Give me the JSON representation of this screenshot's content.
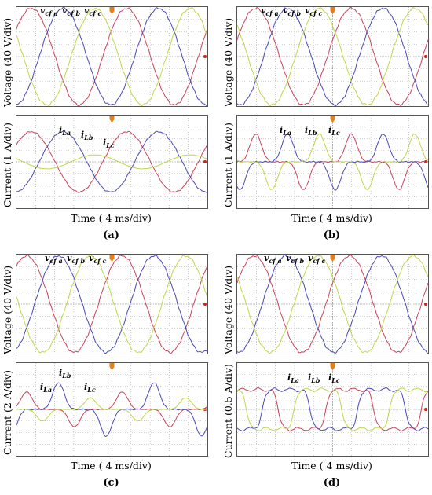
{
  "panels": [
    {
      "letter": "(a)",
      "xlabel": "Time ( 4 ms/div)",
      "voltage": {
        "ylabel": "Voltage (40 V/div)",
        "labels": [
          "vcfa",
          "vcfb",
          "vcfc"
        ]
      },
      "current": {
        "ylabel": "Current (1 A/div)",
        "labels": [
          "iLa",
          "iLb",
          "iLc"
        ]
      }
    },
    {
      "letter": "(b)",
      "xlabel": "Time ( 4 ms/div)",
      "voltage": {
        "ylabel": "Voltage (40 V/div)",
        "labels": [
          "vcfa",
          "vcfb",
          "vcfc"
        ]
      },
      "current": {
        "ylabel": "Current (1 A/div)",
        "labels": [
          "iLa",
          "iLb",
          "iLc"
        ]
      }
    },
    {
      "letter": "(c)",
      "xlabel": "Time ( 4 ms/div)",
      "voltage": {
        "ylabel": "Voltage (40 V/div)",
        "labels": [
          "vcfa",
          "vcfb",
          "vcfc"
        ]
      },
      "current": {
        "ylabel": "Current (2 A/div)",
        "labels": [
          "iLa",
          "iLb",
          "iLc"
        ]
      }
    },
    {
      "letter": "(d)",
      "xlabel": "Time ( 4 ms/div)",
      "voltage": {
        "ylabel": "Voltage (40 V/div)",
        "labels": [
          "vcfa",
          "vcfb",
          "vcfc"
        ]
      },
      "current": {
        "ylabel": "Current (0.5 A/div)",
        "labels": [
          "iLa",
          "iLb",
          "iLc"
        ]
      }
    }
  ],
  "colors": {
    "phase_a": "#c8425a",
    "phase_b": "#4848b8",
    "phase_c": "#bcd848",
    "grid": "#a8a8a8",
    "marker": "#e08020"
  },
  "chart_data": [
    {
      "type": "line",
      "panel": "(a) voltage",
      "xlabel": "Time ( 4 ms/div)",
      "ylabel": "Voltage (40 V/div)",
      "x_divisions": 10,
      "y_divisions": 8,
      "grid": true,
      "series": [
        {
          "name": "vcfa",
          "amplitude_div": 3.9,
          "period_ms": 20,
          "shape": "sine"
        },
        {
          "name": "vcfb",
          "amplitude_div": 3.9,
          "period_ms": 20,
          "shape": "sine"
        },
        {
          "name": "vcfc",
          "amplitude_div": 3.9,
          "period_ms": 20,
          "shape": "sine"
        }
      ]
    },
    {
      "type": "line",
      "panel": "(a) current",
      "xlabel": "Time ( 4 ms/div)",
      "ylabel": "Current (1 A/div)",
      "x_divisions": 10,
      "y_divisions": 8,
      "grid": true,
      "series": [
        {
          "name": "iLa",
          "amplitude_div": 2.6,
          "period_ms": 20,
          "shape": "sine"
        },
        {
          "name": "iLb",
          "amplitude_div": 2.6,
          "period_ms": 20,
          "shape": "sine"
        },
        {
          "name": "iLc",
          "amplitude_div": 0.6,
          "period_ms": 20,
          "shape": "sine"
        }
      ]
    },
    {
      "type": "line",
      "panel": "(b) voltage",
      "xlabel": "Time ( 4 ms/div)",
      "ylabel": "Voltage (40 V/div)",
      "x_divisions": 10,
      "y_divisions": 8,
      "grid": true,
      "series": [
        {
          "name": "vcfa",
          "amplitude_div": 3.9,
          "period_ms": 20,
          "shape": "sine"
        },
        {
          "name": "vcfb",
          "amplitude_div": 3.9,
          "period_ms": 20,
          "shape": "sine"
        },
        {
          "name": "vcfc",
          "amplitude_div": 3.9,
          "period_ms": 20,
          "shape": "sine"
        }
      ]
    },
    {
      "type": "line",
      "panel": "(b) current",
      "xlabel": "Time ( 4 ms/div)",
      "ylabel": "Current (1 A/div)",
      "x_divisions": 10,
      "y_divisions": 8,
      "grid": true,
      "series": [
        {
          "name": "iLa",
          "amplitude_div": 2.4,
          "period_ms": 20,
          "shape": "pulse"
        },
        {
          "name": "iLb",
          "amplitude_div": 2.4,
          "period_ms": 20,
          "shape": "pulse"
        },
        {
          "name": "iLc",
          "amplitude_div": 2.4,
          "period_ms": 20,
          "shape": "pulse"
        }
      ]
    },
    {
      "type": "line",
      "panel": "(c) voltage",
      "xlabel": "Time ( 4 ms/div)",
      "ylabel": "Voltage (40 V/div)",
      "x_divisions": 10,
      "y_divisions": 8,
      "grid": true,
      "series": [
        {
          "name": "vcfa",
          "amplitude_div": 3.9,
          "period_ms": 20,
          "shape": "sine"
        },
        {
          "name": "vcfb",
          "amplitude_div": 3.9,
          "period_ms": 20,
          "shape": "sine"
        },
        {
          "name": "vcfc",
          "amplitude_div": 3.9,
          "period_ms": 20,
          "shape": "sine"
        }
      ]
    },
    {
      "type": "line",
      "panel": "(c) current",
      "xlabel": "Time ( 4 ms/div)",
      "ylabel": "Current (2 A/div)",
      "x_divisions": 10,
      "y_divisions": 8,
      "grid": true,
      "series": [
        {
          "name": "iLa",
          "amplitude_div": 1.5,
          "period_ms": 20,
          "shape": "pulse"
        },
        {
          "name": "iLb",
          "amplitude_div": 2.3,
          "period_ms": 20,
          "shape": "pulse"
        },
        {
          "name": "iLc",
          "amplitude_div": 1.0,
          "period_ms": 20,
          "shape": "pulse"
        }
      ]
    },
    {
      "type": "line",
      "panel": "(d) voltage",
      "xlabel": "Time ( 4 ms/div)",
      "ylabel": "Voltage (40 V/div)",
      "x_divisions": 10,
      "y_divisions": 8,
      "grid": true,
      "series": [
        {
          "name": "vcfa",
          "amplitude_div": 3.9,
          "period_ms": 20,
          "shape": "sine"
        },
        {
          "name": "vcfb",
          "amplitude_div": 3.9,
          "period_ms": 20,
          "shape": "sine"
        },
        {
          "name": "vcfc",
          "amplitude_div": 3.9,
          "period_ms": 20,
          "shape": "sine"
        }
      ]
    },
    {
      "type": "line",
      "panel": "(d) current",
      "xlabel": "Time ( 4 ms/div)",
      "ylabel": "Current (0.5 A/div)",
      "x_divisions": 10,
      "y_divisions": 8,
      "grid": true,
      "series": [
        {
          "name": "iLa",
          "amplitude_div": 1.7,
          "period_ms": 20,
          "shape": "square"
        },
        {
          "name": "iLb",
          "amplitude_div": 1.7,
          "period_ms": 20,
          "shape": "square"
        },
        {
          "name": "iLc",
          "amplitude_div": 1.7,
          "period_ms": 20,
          "shape": "square"
        }
      ]
    }
  ]
}
